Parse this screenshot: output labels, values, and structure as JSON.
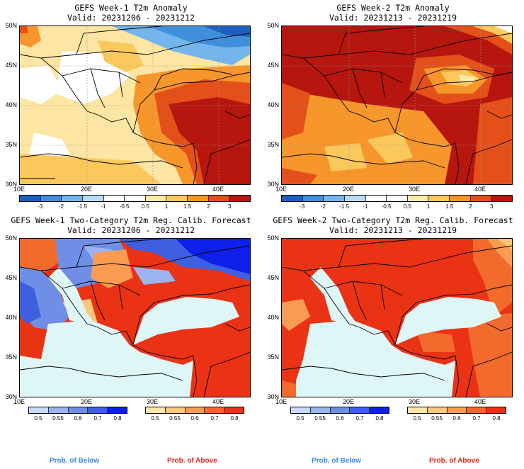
{
  "panels": [
    {
      "title": "GEFS Week-1 T2m Anomaly",
      "valid": "Valid: 20231206 - 20231212"
    },
    {
      "title": "GEFS Week-2 T2m Anomaly",
      "valid": "Valid: 20231213 - 20231219"
    },
    {
      "title": "GEFS Week-1 Two-Category T2m Reg. Calib. Forecast",
      "valid": "Valid: 20231206 - 20231212"
    },
    {
      "title": "GEFS Week-2 Two-Category T2m Reg. Calib. Forecast",
      "valid": "Valid: 20231213 - 20231219"
    }
  ],
  "lat_labels": [
    "50N",
    "45N",
    "40N",
    "35N",
    "30N"
  ],
  "lon_labels": [
    "10E",
    "20E",
    "30E",
    "40E"
  ],
  "anomaly_scale": {
    "labels": [
      "-3",
      "-2",
      "-1.5",
      "-1",
      "-0.5",
      "0.5",
      "1",
      "1.5",
      "2",
      "3"
    ],
    "colors": [
      "#1c5fc0",
      "#3f8fdd",
      "#74b5ec",
      "#b7dbf6",
      "#ffffff",
      "#ffffff",
      "#ffeaa6",
      "#fbc85c",
      "#f7962a",
      "#e4501a",
      "#b6160e"
    ]
  },
  "prob_below_scale": {
    "labels": [
      "0.5",
      "0.55",
      "0.6",
      "0.7",
      "0.8"
    ],
    "colors": [
      "#c8d8f8",
      "#9ab4f0",
      "#6f8fe6",
      "#3d5fe0",
      "#0d1fe8"
    ]
  },
  "prob_above_scale": {
    "labels": [
      "0.5",
      "0.55",
      "0.6",
      "0.7",
      "0.8"
    ],
    "colors": [
      "#fde6ac",
      "#fbc77a",
      "#f99c52",
      "#f26a2c",
      "#ea3315"
    ]
  },
  "footer": {
    "below_1": "Prob. of Below",
    "above_1": "Prob. of Above",
    "below_2": "Prob. of Below",
    "above_2": "Prob. of Above"
  }
}
